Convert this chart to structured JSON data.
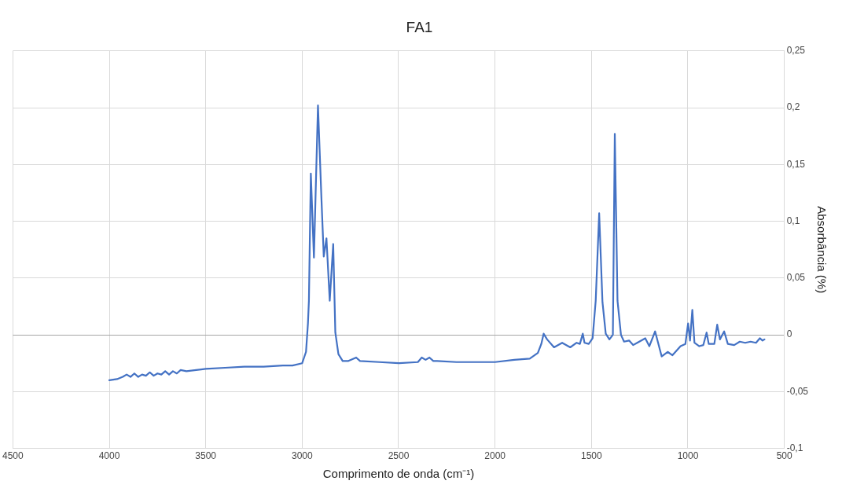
{
  "chart_data": {
    "type": "line",
    "title": "FA1",
    "xlabel": "Comprimento de onda (cm⁻¹)",
    "ylabel": "Absorbância (%)",
    "xlim": [
      4500,
      500
    ],
    "xticks": [
      4500,
      4000,
      3500,
      3000,
      2500,
      2000,
      1500,
      1000,
      500
    ],
    "ylim": [
      -0.1,
      0.25
    ],
    "yticks": [
      {
        "value": -0.1,
        "label": "-0,1"
      },
      {
        "value": -0.05,
        "label": "-0,05"
      },
      {
        "value": 0,
        "label": "0"
      },
      {
        "value": 0.05,
        "label": "0,05"
      },
      {
        "value": 0.1,
        "label": "0,1"
      },
      {
        "value": 0.15,
        "label": "0,15"
      },
      {
        "value": 0.2,
        "label": "0,2"
      },
      {
        "value": 0.25,
        "label": "0,25"
      }
    ],
    "grid": true,
    "legend": false,
    "marker": "none",
    "line_style": "solid",
    "series": [
      {
        "color": "#4472c4",
        "x": [
          4000,
          3960,
          3930,
          3910,
          3890,
          3870,
          3850,
          3830,
          3810,
          3790,
          3770,
          3750,
          3730,
          3710,
          3690,
          3670,
          3650,
          3630,
          3600,
          3550,
          3500,
          3400,
          3300,
          3200,
          3100,
          3050,
          3000,
          2980,
          2970,
          2965,
          2955,
          2939,
          2918,
          2900,
          2888,
          2874,
          2857,
          2839,
          2828,
          2812,
          2790,
          2760,
          2720,
          2700,
          2600,
          2500,
          2400,
          2380,
          2360,
          2340,
          2320,
          2300,
          2200,
          2100,
          2000,
          1900,
          1820,
          1778,
          1760,
          1748,
          1730,
          1694,
          1652,
          1610,
          1577,
          1560,
          1545,
          1536,
          1514,
          1494,
          1478,
          1460,
          1443,
          1426,
          1407,
          1389,
          1379,
          1365,
          1347,
          1331,
          1305,
          1284,
          1263,
          1221,
          1200,
          1170,
          1136,
          1105,
          1080,
          1038,
          1013,
          999,
          989,
          977,
          966,
          941,
          920,
          903,
          892,
          863,
          848,
          834,
          812,
          793,
          760,
          731,
          703,
          675,
          647,
          627,
          613,
          603
        ],
        "values": [
          -0.04,
          -0.039,
          -0.037,
          -0.035,
          -0.037,
          -0.034,
          -0.037,
          -0.035,
          -0.036,
          -0.033,
          -0.036,
          -0.034,
          -0.035,
          -0.032,
          -0.035,
          -0.032,
          -0.034,
          -0.031,
          -0.032,
          -0.031,
          -0.03,
          -0.029,
          -0.028,
          -0.028,
          -0.027,
          -0.027,
          -0.025,
          -0.015,
          0.01,
          0.03,
          0.142,
          0.068,
          0.202,
          0.12,
          0.069,
          0.085,
          0.03,
          0.08,
          0.002,
          -0.017,
          -0.023,
          -0.023,
          -0.02,
          -0.023,
          -0.024,
          -0.025,
          -0.024,
          -0.02,
          -0.022,
          -0.02,
          -0.023,
          -0.023,
          -0.024,
          -0.024,
          -0.024,
          -0.022,
          -0.021,
          -0.016,
          -0.008,
          0.001,
          -0.004,
          -0.011,
          -0.007,
          -0.011,
          -0.007,
          -0.008,
          0.001,
          -0.007,
          -0.008,
          -0.003,
          0.03,
          0.107,
          0.029,
          0.001,
          -0.004,
          0.0,
          0.177,
          0.03,
          0.0,
          -0.006,
          -0.005,
          -0.009,
          -0.007,
          -0.003,
          -0.01,
          0.003,
          -0.019,
          -0.015,
          -0.018,
          -0.01,
          -0.008,
          0.01,
          -0.005,
          0.022,
          -0.007,
          -0.01,
          -0.009,
          0.002,
          -0.008,
          -0.008,
          0.009,
          -0.004,
          0.003,
          -0.008,
          -0.009,
          -0.006,
          -0.007,
          -0.006,
          -0.007,
          -0.003,
          -0.005,
          -0.004
        ]
      }
    ]
  }
}
